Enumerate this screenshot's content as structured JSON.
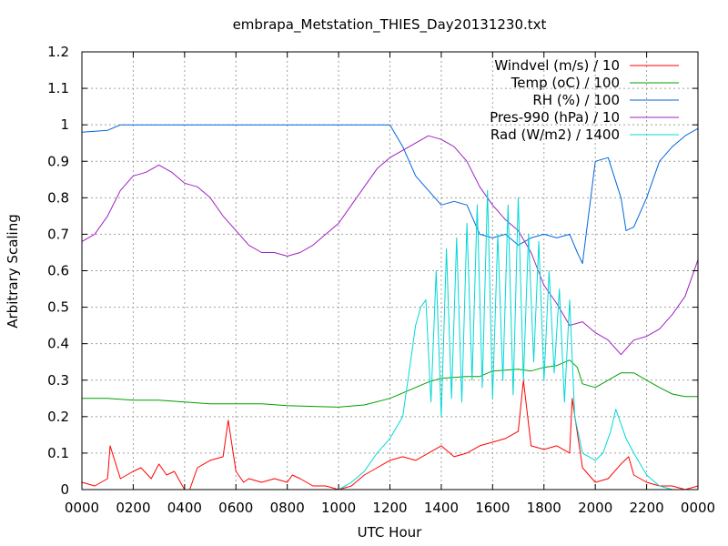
{
  "chart_data": {
    "type": "line",
    "title": "embrapa_Metstation_THIES_Day20131230.txt",
    "xlabel": "UTC Hour",
    "ylabel": "Arbitrary Scaling",
    "xlim": [
      0,
      24
    ],
    "ylim": [
      0,
      1.2
    ],
    "grid": true,
    "legend_position": "top-right",
    "xticks": [
      {
        "value": 0,
        "label": "0000"
      },
      {
        "value": 2,
        "label": "0200"
      },
      {
        "value": 4,
        "label": "0400"
      },
      {
        "value": 6,
        "label": "0600"
      },
      {
        "value": 8,
        "label": "0800"
      },
      {
        "value": 10,
        "label": "1000"
      },
      {
        "value": 12,
        "label": "1200"
      },
      {
        "value": 14,
        "label": "1400"
      },
      {
        "value": 16,
        "label": "1600"
      },
      {
        "value": 18,
        "label": "1800"
      },
      {
        "value": 20,
        "label": "2000"
      },
      {
        "value": 22,
        "label": "2200"
      },
      {
        "value": 24,
        "label": "0000"
      }
    ],
    "yticks": [
      {
        "value": 0,
        "label": "0"
      },
      {
        "value": 0.1,
        "label": "0.1"
      },
      {
        "value": 0.2,
        "label": "0.2"
      },
      {
        "value": 0.3,
        "label": "0.3"
      },
      {
        "value": 0.4,
        "label": "0.4"
      },
      {
        "value": 0.5,
        "label": "0.5"
      },
      {
        "value": 0.6,
        "label": "0.6"
      },
      {
        "value": 0.7,
        "label": "0.7"
      },
      {
        "value": 0.8,
        "label": "0.8"
      },
      {
        "value": 0.9,
        "label": "0.9"
      },
      {
        "value": 1,
        "label": "1"
      },
      {
        "value": 1.1,
        "label": "1.1"
      },
      {
        "value": 1.2,
        "label": "1.2"
      }
    ],
    "series": [
      {
        "name": "Windvel (m/s) / 10",
        "color": "#ff0000",
        "x": [
          0,
          0.5,
          1,
          1.1,
          1.5,
          2,
          2.3,
          2.7,
          3,
          3.3,
          3.6,
          4,
          4.2,
          4.5,
          5,
          5.5,
          5.7,
          6,
          6.3,
          6.5,
          7,
          7.5,
          8,
          8.2,
          8.5,
          9,
          9.5,
          10,
          10.5,
          11,
          11.5,
          12,
          12.5,
          13,
          13.5,
          14,
          14.5,
          15,
          15.5,
          16,
          16.5,
          17,
          17.2,
          17.5,
          18,
          18.5,
          19,
          19.1,
          19.5,
          20,
          20.5,
          21,
          21.3,
          21.5,
          22,
          22.5,
          23,
          23.5,
          24
        ],
        "y": [
          0.02,
          0.01,
          0.03,
          0.12,
          0.03,
          0.05,
          0.06,
          0.03,
          0.07,
          0.04,
          0.05,
          0,
          0,
          0.06,
          0.08,
          0.09,
          0.19,
          0.05,
          0.02,
          0.03,
          0.02,
          0.03,
          0.02,
          0.04,
          0.03,
          0.01,
          0.01,
          0,
          0.01,
          0.04,
          0.06,
          0.08,
          0.09,
          0.08,
          0.1,
          0.12,
          0.09,
          0.1,
          0.12,
          0.13,
          0.14,
          0.16,
          0.3,
          0.12,
          0.11,
          0.12,
          0.1,
          0.25,
          0.06,
          0.02,
          0.03,
          0.07,
          0.09,
          0.04,
          0.02,
          0.01,
          0.01,
          0,
          0.01
        ]
      },
      {
        "name": "Temp (oC) / 100",
        "color": "#00a000",
        "x": [
          0,
          1,
          2,
          3,
          4,
          5,
          6,
          7,
          8,
          9,
          10,
          11,
          12,
          12.5,
          13,
          13.5,
          14,
          15,
          15.5,
          16,
          17,
          17.5,
          18,
          18.5,
          19,
          19.3,
          19.5,
          20,
          20.5,
          21,
          21.5,
          22,
          22.5,
          23,
          23.5,
          24
        ],
        "y": [
          0.25,
          0.25,
          0.245,
          0.245,
          0.24,
          0.235,
          0.235,
          0.235,
          0.23,
          0.228,
          0.226,
          0.232,
          0.25,
          0.265,
          0.28,
          0.295,
          0.305,
          0.31,
          0.31,
          0.325,
          0.33,
          0.325,
          0.335,
          0.34,
          0.355,
          0.335,
          0.29,
          0.28,
          0.3,
          0.32,
          0.32,
          0.3,
          0.28,
          0.262,
          0.255,
          0.255
        ]
      },
      {
        "name": "RH (%) / 100",
        "color": "#0066dd",
        "x": [
          0,
          1,
          1.5,
          2,
          4,
          6,
          8,
          10,
          12,
          12.5,
          13,
          13.5,
          14,
          14.5,
          15,
          15.5,
          16,
          16.5,
          17,
          17.5,
          18,
          18.5,
          19,
          19.3,
          19.5,
          20,
          20.5,
          21,
          21.2,
          21.5,
          22,
          22.5,
          23,
          23.5,
          24
        ],
        "y": [
          0.98,
          0.985,
          1,
          1,
          1,
          1,
          1,
          1,
          1,
          0.94,
          0.86,
          0.82,
          0.78,
          0.79,
          0.78,
          0.7,
          0.69,
          0.7,
          0.67,
          0.69,
          0.7,
          0.69,
          0.7,
          0.65,
          0.62,
          0.9,
          0.91,
          0.8,
          0.71,
          0.72,
          0.8,
          0.9,
          0.94,
          0.97,
          0.99
        ]
      },
      {
        "name": "Pres-990 (hPa) / 10",
        "color": "#a020c0",
        "x": [
          0,
          0.5,
          1,
          1.5,
          2,
          2.5,
          3,
          3.5,
          4,
          4.5,
          5,
          5.5,
          6,
          6.5,
          7,
          7.5,
          8,
          8.5,
          9,
          9.5,
          10,
          10.5,
          11,
          11.5,
          12,
          12.5,
          13,
          13.5,
          14,
          14.5,
          15,
          15.5,
          16,
          16.5,
          17,
          17.5,
          18,
          18.5,
          19,
          19.5,
          20,
          20.5,
          21,
          21.5,
          22,
          22.5,
          23,
          23.5,
          24
        ],
        "y": [
          0.68,
          0.7,
          0.75,
          0.82,
          0.86,
          0.87,
          0.89,
          0.87,
          0.84,
          0.83,
          0.8,
          0.75,
          0.71,
          0.67,
          0.65,
          0.65,
          0.64,
          0.65,
          0.67,
          0.7,
          0.73,
          0.78,
          0.83,
          0.88,
          0.91,
          0.93,
          0.95,
          0.97,
          0.96,
          0.94,
          0.9,
          0.83,
          0.78,
          0.74,
          0.71,
          0.65,
          0.56,
          0.51,
          0.45,
          0.46,
          0.43,
          0.41,
          0.37,
          0.41,
          0.42,
          0.44,
          0.48,
          0.53,
          0.63
        ]
      },
      {
        "name": "Rad (W/m2) / 1400",
        "color": "#00d8d8",
        "x": [
          0,
          10,
          10.5,
          11,
          11.5,
          12,
          12.5,
          12.8,
          13,
          13.2,
          13.4,
          13.6,
          13.8,
          14,
          14.2,
          14.4,
          14.6,
          14.8,
          15,
          15.2,
          15.4,
          15.6,
          15.8,
          16,
          16.2,
          16.4,
          16.6,
          16.8,
          17,
          17.2,
          17.4,
          17.6,
          17.8,
          18,
          18.2,
          18.4,
          18.6,
          18.8,
          19,
          19.2,
          19.5,
          20,
          20.3,
          20.6,
          20.8,
          21,
          21.2,
          21.5,
          22,
          22.5,
          23,
          24
        ],
        "y": [
          0,
          0,
          0.02,
          0.05,
          0.1,
          0.14,
          0.2,
          0.35,
          0.45,
          0.5,
          0.52,
          0.24,
          0.6,
          0.2,
          0.66,
          0.25,
          0.69,
          0.24,
          0.73,
          0.3,
          0.78,
          0.28,
          0.82,
          0.25,
          0.7,
          0.3,
          0.78,
          0.26,
          0.8,
          0.3,
          0.7,
          0.35,
          0.68,
          0.3,
          0.6,
          0.32,
          0.55,
          0.24,
          0.52,
          0.2,
          0.1,
          0.08,
          0.1,
          0.16,
          0.22,
          0.18,
          0.14,
          0.1,
          0.04,
          0.01,
          0,
          0
        ]
      }
    ]
  }
}
